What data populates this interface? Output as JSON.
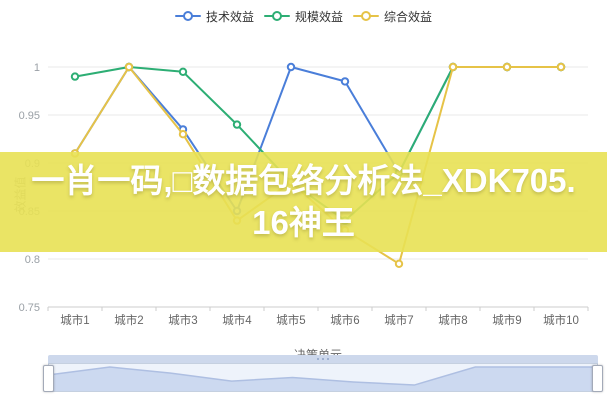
{
  "legend": {
    "items": [
      {
        "label": "技术效益"
      },
      {
        "label": "规模效益"
      },
      {
        "label": "综合效益"
      }
    ]
  },
  "watermark": {
    "line1": "一肖一码,□数据包络分析法_XDK705.",
    "line2": "16神王",
    "band_color": "#e8e154",
    "text_color": "#ffffff"
  },
  "chart_data": {
    "type": "line",
    "title": "",
    "categories": [
      "城市1",
      "城市2",
      "城市3",
      "城市4",
      "城市5",
      "城市6",
      "城市7",
      "城市8",
      "城市9",
      "城市10"
    ],
    "series": [
      {
        "name": "技术效益",
        "color": "#4a7ed9",
        "values": [
          0.91,
          1,
          0.935,
          0.85,
          1,
          0.985,
          0.89,
          1,
          1,
          1
        ]
      },
      {
        "name": "规模效益",
        "color": "#2dae74",
        "values": [
          0.99,
          1,
          0.995,
          0.94,
          0.88,
          0.84,
          0.89,
          1,
          1,
          1
        ]
      },
      {
        "name": "综合效益",
        "color": "#e6c347",
        "values": [
          0.91,
          1,
          0.93,
          0.84,
          0.88,
          0.83,
          0.795,
          1,
          1,
          1
        ]
      }
    ],
    "xlabel": "决策单元",
    "ylabel": "效益值",
    "ylim": [
      0.75,
      1
    ],
    "yticks": [
      1,
      0.95,
      0.9,
      0.85,
      0.8,
      0.75
    ],
    "grid": true,
    "legend_position": "top",
    "marker": "empty-circle"
  },
  "datazoom": {
    "range_start_pct": 0,
    "range_end_pct": 100
  }
}
